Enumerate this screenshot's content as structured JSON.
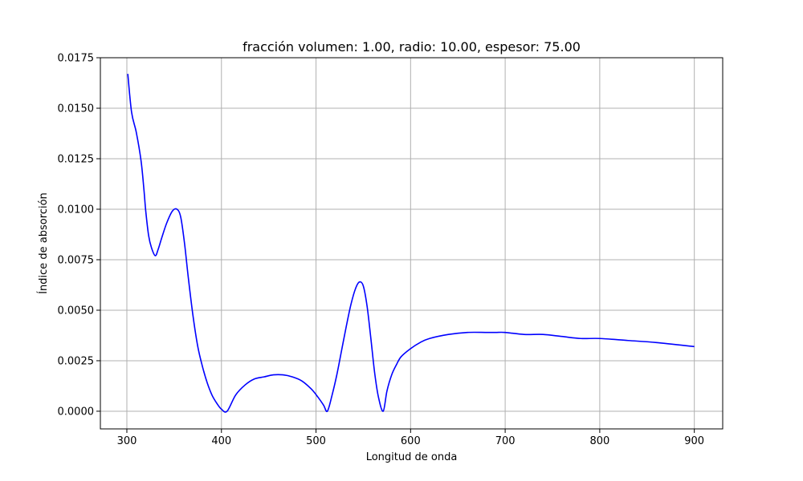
{
  "chart_data": {
    "type": "line",
    "title": "fracción volumen: 1.00, radio: 10.00, espesor: 75.00",
    "xlabel": "Longitud de onda",
    "ylabel": "Índice de absorción",
    "xlim": [
      272,
      930
    ],
    "ylim": [
      -0.000875,
      0.0175
    ],
    "xticks": [
      300,
      400,
      500,
      600,
      700,
      800,
      900
    ],
    "xtick_labels": [
      "300",
      "400",
      "500",
      "600",
      "700",
      "800",
      "900"
    ],
    "yticks": [
      0.0,
      0.0025,
      0.005,
      0.0075,
      0.01,
      0.0125,
      0.015,
      0.0175
    ],
    "ytick_labels": [
      "0.0000",
      "0.0025",
      "0.0050",
      "0.0075",
      "0.0100",
      "0.0125",
      "0.0150",
      "0.0175"
    ],
    "grid": true,
    "series": [
      {
        "color": "#0000ff",
        "x": [
          301,
          305,
          310,
          315,
          318,
          320,
          323,
          326,
          330,
          333,
          337,
          342,
          348,
          353,
          357,
          361,
          365,
          370,
          375,
          380,
          385,
          390,
          395,
          400,
          406,
          415,
          425,
          435,
          445,
          455,
          465,
          475,
          485,
          495,
          502,
          508,
          512,
          517,
          522,
          527,
          532,
          537,
          542,
          546,
          550,
          554,
          558,
          562,
          566,
          571,
          575,
          580,
          585,
          590,
          600,
          610,
          620,
          640,
          660,
          680,
          690,
          700,
          720,
          740,
          760,
          780,
          800,
          830,
          860,
          900
        ],
        "y": [
          0.0167,
          0.0148,
          0.0138,
          0.0124,
          0.011,
          0.0099,
          0.0087,
          0.0081,
          0.0077,
          0.008,
          0.0086,
          0.0093,
          0.0099,
          0.01,
          0.0096,
          0.0083,
          0.0066,
          0.0047,
          0.0032,
          0.0022,
          0.0014,
          0.0008,
          0.0004,
          0.0001,
          0.0,
          0.0008,
          0.0013,
          0.0016,
          0.0017,
          0.0018,
          0.0018,
          0.0017,
          0.0015,
          0.0011,
          0.0007,
          0.0003,
          0.0,
          0.0008,
          0.0018,
          0.003,
          0.0042,
          0.0053,
          0.0061,
          0.0064,
          0.0062,
          0.0052,
          0.0036,
          0.0019,
          0.0007,
          0.0,
          0.001,
          0.0018,
          0.0023,
          0.0027,
          0.0031,
          0.0034,
          0.0036,
          0.0038,
          0.0039,
          0.0039,
          0.0039,
          0.0039,
          0.0038,
          0.0038,
          0.0037,
          0.0036,
          0.0036,
          0.0035,
          0.0034,
          0.0032
        ]
      }
    ]
  }
}
